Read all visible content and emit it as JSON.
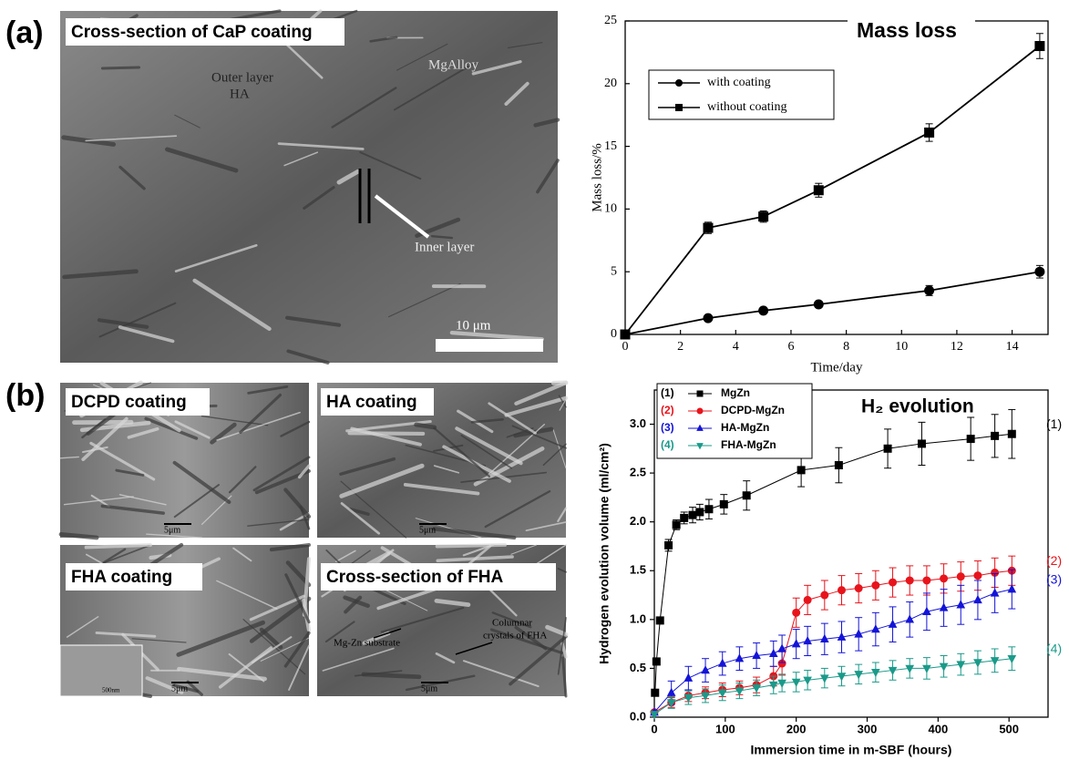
{
  "panel_labels": [
    "(a)",
    "(b)"
  ],
  "images": [
    {
      "title": "Cross-section of CaP coating",
      "notes": [
        "Outer layer",
        "HA",
        "MgAlloy",
        "Inner layer",
        "10 μm"
      ]
    },
    {
      "title": "DCPD coating",
      "notes": [
        "5μm"
      ]
    },
    {
      "title": "HA coating",
      "notes": [
        "5μm"
      ]
    },
    {
      "title": "FHA coating",
      "notes": [
        "500nm",
        "5μm"
      ]
    },
    {
      "title": "Cross-section of FHA",
      "notes": [
        "Columnar",
        "crystals of FHA",
        "Mg-Zn substrate",
        "5μm"
      ]
    }
  ],
  "chart_data": [
    {
      "type": "line",
      "title": "Mass loss",
      "x_label": "Time/day",
      "y_label": "Mass loss/%",
      "xlim": [
        0,
        15.3
      ],
      "xticks": [
        0,
        2,
        4,
        6,
        8,
        10,
        12,
        14
      ],
      "ylim": [
        0,
        25
      ],
      "yticks": [
        0,
        5,
        10,
        15,
        20,
        25
      ],
      "series": [
        {
          "name": "with coating",
          "color": "#000000",
          "marker": "circle",
          "x": [
            0,
            3,
            5,
            7,
            11,
            15
          ],
          "values": [
            0,
            1.3,
            1.9,
            2.4,
            3.5,
            5.0
          ],
          "errors": [
            null,
            0.2,
            0.2,
            0.25,
            0.4,
            0.5
          ]
        },
        {
          "name": "without coating",
          "color": "#000000",
          "marker": "square",
          "x": [
            0,
            3,
            5,
            7,
            11,
            15
          ],
          "values": [
            0,
            8.5,
            9.4,
            11.5,
            16.1,
            23.0
          ],
          "errors": [
            null,
            0.45,
            0.45,
            0.55,
            0.7,
            1.0
          ]
        }
      ]
    },
    {
      "type": "line",
      "title": "H₂ evolution",
      "x_label": "Immersion time in m-SBF (hours)",
      "y_label": "Hydrogen evolution volume (ml/cm²)",
      "xlim": [
        0,
        555
      ],
      "xticks": [
        0,
        100,
        200,
        300,
        400,
        500
      ],
      "ylim": [
        0,
        3.35
      ],
      "yticks": [
        {
          "value": 0,
          "label": "0.0"
        },
        0.5,
        {
          "value": 1,
          "label": "1.0"
        },
        1.5,
        {
          "value": 2,
          "label": "2.0"
        },
        2.5,
        {
          "value": 3,
          "label": "3.0"
        }
      ],
      "series": [
        {
          "name": "MgZn",
          "tag": "(1)",
          "color": "#000000",
          "marker": "square",
          "x": [
            1,
            3,
            8,
            20,
            31,
            42,
            54,
            64,
            77,
            98,
            130,
            207,
            260,
            329,
            377,
            446,
            480,
            504
          ],
          "values": [
            0.25,
            0.57,
            0.99,
            1.76,
            1.97,
            2.04,
            2.07,
            2.1,
            2.13,
            2.18,
            2.27,
            2.53,
            2.58,
            2.75,
            2.8,
            2.85,
            2.88,
            2.9
          ],
          "errors": [
            null,
            null,
            null,
            0.06,
            0.05,
            0.06,
            0.08,
            0.08,
            0.1,
            0.1,
            0.15,
            0.17,
            0.18,
            0.2,
            0.22,
            0.22,
            0.22,
            0.25
          ]
        },
        {
          "name": "DCPD-MgZn",
          "tag": "(2)",
          "color": "#e8141c",
          "marker": "circle",
          "x": [
            0,
            24,
            48,
            72,
            96,
            120,
            144,
            168,
            180,
            200,
            216,
            240,
            264,
            288,
            312,
            336,
            360,
            384,
            408,
            432,
            456,
            480,
            504
          ],
          "values": [
            0.05,
            0.15,
            0.22,
            0.25,
            0.28,
            0.3,
            0.33,
            0.42,
            0.55,
            1.07,
            1.2,
            1.25,
            1.3,
            1.32,
            1.35,
            1.38,
            1.4,
            1.4,
            1.42,
            1.44,
            1.45,
            1.48,
            1.5
          ],
          "errors": [
            null,
            0.05,
            0.06,
            0.06,
            0.07,
            0.07,
            0.08,
            0.1,
            0.12,
            0.15,
            0.15,
            0.15,
            0.15,
            0.15,
            0.15,
            0.15,
            0.15,
            0.15,
            0.15,
            0.15,
            0.15,
            0.15,
            0.15
          ]
        },
        {
          "name": "HA-MgZn",
          "tag": "(3)",
          "color": "#1414d8",
          "marker": "triangle",
          "x": [
            0,
            24,
            48,
            72,
            96,
            120,
            144,
            168,
            180,
            200,
            216,
            240,
            264,
            288,
            312,
            336,
            360,
            384,
            408,
            432,
            456,
            480,
            504
          ],
          "values": [
            0.05,
            0.25,
            0.4,
            0.48,
            0.55,
            0.6,
            0.63,
            0.65,
            0.7,
            0.75,
            0.78,
            0.8,
            0.82,
            0.85,
            0.9,
            0.95,
            1.0,
            1.08,
            1.12,
            1.15,
            1.2,
            1.27,
            1.31
          ],
          "errors": [
            null,
            0.12,
            0.12,
            0.12,
            0.12,
            0.12,
            0.13,
            0.13,
            0.14,
            0.15,
            0.15,
            0.16,
            0.16,
            0.17,
            0.17,
            0.18,
            0.18,
            0.19,
            0.19,
            0.2,
            0.2,
            0.2,
            0.2
          ]
        },
        {
          "name": "FHA-MgZn",
          "tag": "(4)",
          "color": "#1a9a8a",
          "marker": "triangle-down",
          "x": [
            0,
            24,
            48,
            72,
            96,
            120,
            144,
            168,
            180,
            200,
            216,
            240,
            264,
            288,
            312,
            336,
            360,
            384,
            408,
            432,
            456,
            480,
            504
          ],
          "values": [
            0.03,
            0.15,
            0.2,
            0.22,
            0.25,
            0.27,
            0.3,
            0.33,
            0.35,
            0.36,
            0.38,
            0.4,
            0.42,
            0.44,
            0.46,
            0.48,
            0.5,
            0.5,
            0.52,
            0.54,
            0.56,
            0.58,
            0.6
          ],
          "errors": [
            null,
            0.06,
            0.07,
            0.07,
            0.08,
            0.08,
            0.08,
            0.09,
            0.09,
            0.1,
            0.1,
            0.1,
            0.1,
            0.1,
            0.1,
            0.1,
            0.1,
            0.11,
            0.11,
            0.11,
            0.12,
            0.12,
            0.12
          ]
        }
      ]
    }
  ]
}
